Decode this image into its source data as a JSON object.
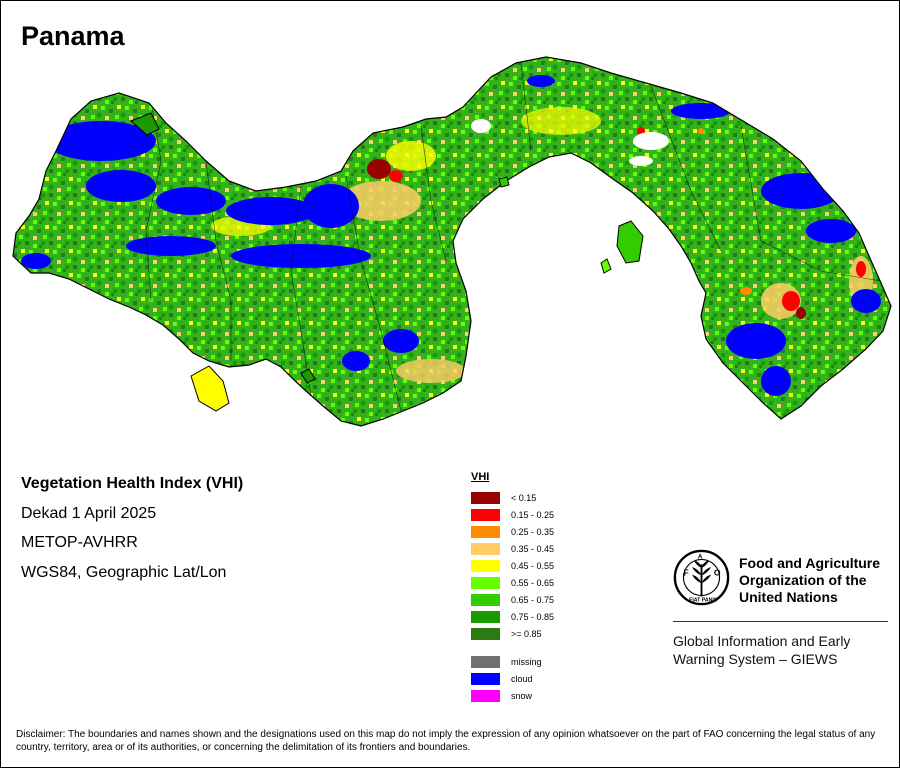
{
  "map": {
    "title": "Panama",
    "info": {
      "index_name": "Vegetation Health Index (VHI)",
      "period": "Dekad 1 April 2025",
      "sensor": "METOP-AVHRR",
      "projection": "WGS84, Geographic Lat/Lon"
    },
    "legend": {
      "title": "VHI",
      "classes": [
        {
          "label": "< 0.15",
          "color": "#990000"
        },
        {
          "label": "0.15 - 0.25",
          "color": "#ff0000"
        },
        {
          "label": "0.25 - 0.35",
          "color": "#ff8c00"
        },
        {
          "label": "0.35 - 0.45",
          "color": "#ffcc66"
        },
        {
          "label": "0.45 - 0.55",
          "color": "#ffff00"
        },
        {
          "label": "0.55 - 0.65",
          "color": "#66ff00"
        },
        {
          "label": "0.65 - 0.75",
          "color": "#33cc00"
        },
        {
          "label": "0.75 - 0.85",
          "color": "#1a9900"
        },
        {
          "label": ">= 0.85",
          "color": "#2e7a12"
        }
      ],
      "special": [
        {
          "label": "missing",
          "color": "#707070"
        },
        {
          "label": "cloud",
          "color": "#0000ff"
        },
        {
          "label": "snow",
          "color": "#ff00ff"
        }
      ]
    },
    "organization": {
      "name_lines": [
        "Food and Agriculture",
        "Organization of the",
        "United Nations"
      ],
      "system_lines": [
        "Global Information and Early",
        "Warning System – GIEWS"
      ],
      "logo_text": "FIAT PANIS",
      "logo_icon": "fao-wheat-logo"
    },
    "disclaimer": "Disclaimer: The boundaries and names shown and the designations used on this map do not imply the expression of any opinion whatsoever on the part of FAO concerning the legal status of any country, territory, area or of its authorities, or concerning the delimitation of its frontiers and boundaries."
  }
}
